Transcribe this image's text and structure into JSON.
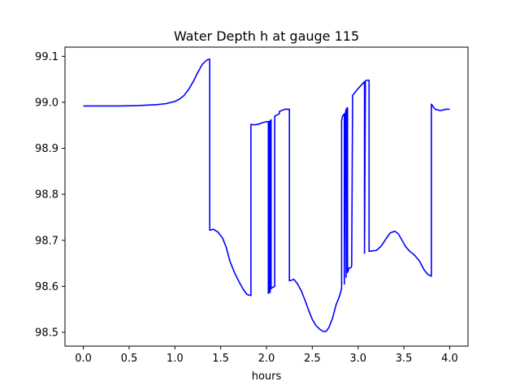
{
  "chart_data": {
    "type": "line",
    "title": "Water Depth h at gauge 115",
    "xlabel": "hours",
    "ylabel": "",
    "xlim": [
      -0.2,
      4.2
    ],
    "ylim": [
      98.47,
      99.12
    ],
    "xticks": [
      0.0,
      0.5,
      1.0,
      1.5,
      2.0,
      2.5,
      3.0,
      3.5,
      4.0
    ],
    "xtick_labels": [
      "0.0",
      "0.5",
      "1.0",
      "1.5",
      "2.0",
      "2.5",
      "3.0",
      "3.5",
      "4.0"
    ],
    "yticks": [
      98.5,
      98.6,
      98.7,
      98.8,
      98.9,
      99.0,
      99.1
    ],
    "ytick_labels": [
      "98.5",
      "98.6",
      "98.7",
      "98.8",
      "98.9",
      "99.0",
      "99.1"
    ],
    "grid": false,
    "series": [
      {
        "color": "#0000ff",
        "x": [
          0.0,
          0.2,
          0.4,
          0.6,
          0.8,
          0.9,
          1.0,
          1.05,
          1.1,
          1.15,
          1.2,
          1.25,
          1.3,
          1.35,
          1.38,
          1.38,
          1.42,
          1.47,
          1.52,
          1.56,
          1.6,
          1.65,
          1.7,
          1.75,
          1.79,
          1.83,
          1.83,
          1.87,
          1.92,
          1.96,
          2.0,
          2.02,
          2.02,
          2.025,
          2.025,
          2.035,
          2.035,
          2.04,
          2.04,
          2.05,
          2.05,
          2.07,
          2.09,
          2.09,
          2.14,
          2.14,
          2.2,
          2.25,
          2.25,
          2.3,
          2.34,
          2.38,
          2.42,
          2.46,
          2.5,
          2.54,
          2.58,
          2.62,
          2.65,
          2.68,
          2.72,
          2.76,
          2.8,
          2.82,
          2.82,
          2.83,
          2.85,
          2.85,
          2.86,
          2.87,
          2.87,
          2.88,
          2.885,
          2.885,
          2.89,
          2.9,
          2.92,
          2.93,
          2.94,
          2.94,
          3.0,
          3.07,
          3.07,
          3.08,
          3.09,
          3.1,
          3.12,
          3.12,
          3.15,
          3.2,
          3.25,
          3.3,
          3.35,
          3.4,
          3.44,
          3.48,
          3.52,
          3.56,
          3.62,
          3.67,
          3.72,
          3.76,
          3.8,
          3.8,
          3.84,
          3.9,
          3.96,
          4.0
        ],
        "y": [
          98.992,
          98.992,
          98.992,
          98.993,
          98.995,
          98.997,
          99.002,
          99.007,
          99.015,
          99.028,
          99.045,
          99.065,
          99.083,
          99.092,
          99.094,
          98.722,
          98.724,
          98.718,
          98.705,
          98.685,
          98.655,
          98.63,
          98.61,
          98.592,
          98.582,
          98.58,
          98.952,
          98.951,
          98.953,
          98.956,
          98.958,
          98.958,
          98.585,
          98.585,
          98.958,
          98.958,
          98.587,
          98.587,
          98.96,
          98.962,
          98.595,
          98.598,
          98.6,
          98.97,
          98.975,
          98.98,
          98.985,
          98.985,
          98.612,
          98.615,
          98.605,
          98.59,
          98.57,
          98.548,
          98.528,
          98.515,
          98.507,
          98.502,
          98.502,
          98.51,
          98.53,
          98.56,
          98.58,
          98.595,
          98.96,
          98.97,
          98.975,
          98.605,
          98.975,
          98.985,
          98.62,
          98.988,
          98.988,
          98.63,
          98.632,
          98.64,
          98.64,
          98.645,
          99.01,
          99.015,
          99.03,
          99.045,
          98.672,
          99.046,
          99.048,
          99.048,
          99.048,
          98.676,
          98.677,
          98.678,
          98.687,
          98.702,
          98.716,
          98.72,
          98.714,
          98.7,
          98.686,
          98.677,
          98.667,
          98.655,
          98.636,
          98.626,
          98.622,
          98.996,
          98.985,
          98.982,
          98.985,
          98.985
        ]
      }
    ]
  }
}
